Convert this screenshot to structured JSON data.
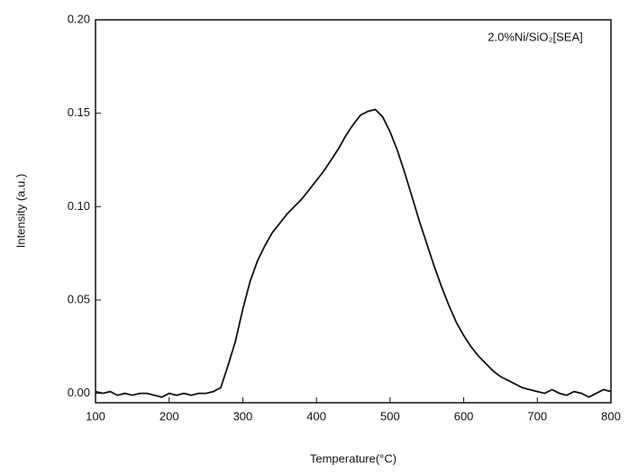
{
  "chart_data": {
    "type": "line",
    "x_label": "Temperature(°C)",
    "y_label": "Intensity (a.u.)",
    "annotation": "2.0%Ni/SiO₂[SEA]",
    "x": [
      100,
      110,
      120,
      130,
      140,
      150,
      160,
      170,
      180,
      190,
      200,
      210,
      220,
      230,
      240,
      250,
      260,
      270,
      280,
      290,
      300,
      310,
      320,
      330,
      340,
      350,
      360,
      370,
      380,
      390,
      400,
      410,
      420,
      430,
      440,
      450,
      460,
      470,
      480,
      490,
      500,
      510,
      520,
      530,
      540,
      550,
      560,
      570,
      580,
      590,
      600,
      610,
      620,
      630,
      640,
      650,
      660,
      670,
      680,
      690,
      700,
      710,
      720,
      730,
      740,
      750,
      760,
      770,
      780,
      790,
      800
    ],
    "series": [
      {
        "name": "2.0%Ni/SiO₂[SEA]",
        "color": "#111111",
        "values": [
          0.001,
          0.0,
          0.001,
          -0.001,
          0.0,
          -0.001,
          0.0,
          0.0,
          -0.001,
          -0.002,
          0.0,
          -0.001,
          0.0,
          -0.001,
          0.0,
          0.0,
          0.001,
          0.003,
          0.015,
          0.028,
          0.045,
          0.06,
          0.071,
          0.079,
          0.086,
          0.091,
          0.096,
          0.1,
          0.104,
          0.109,
          0.114,
          0.119,
          0.125,
          0.131,
          0.138,
          0.144,
          0.149,
          0.151,
          0.152,
          0.148,
          0.14,
          0.13,
          0.118,
          0.105,
          0.092,
          0.08,
          0.068,
          0.057,
          0.047,
          0.038,
          0.031,
          0.025,
          0.02,
          0.016,
          0.012,
          0.009,
          0.007,
          0.005,
          0.003,
          0.002,
          0.001,
          0.0,
          0.002,
          0.0,
          -0.001,
          0.001,
          0.0,
          -0.002,
          0.0,
          0.002,
          0.001
        ]
      }
    ],
    "xlim": [
      100,
      800
    ],
    "ylim": [
      -0.005,
      0.2
    ],
    "xticks": [
      100,
      200,
      300,
      400,
      500,
      600,
      700,
      800
    ],
    "yticks": [
      {
        "value": 0,
        "label": "0.00"
      },
      0.05,
      {
        "value": 0.1,
        "label": "0.10"
      },
      0.15,
      {
        "value": 0.2,
        "label": "0.20"
      }
    ]
  }
}
